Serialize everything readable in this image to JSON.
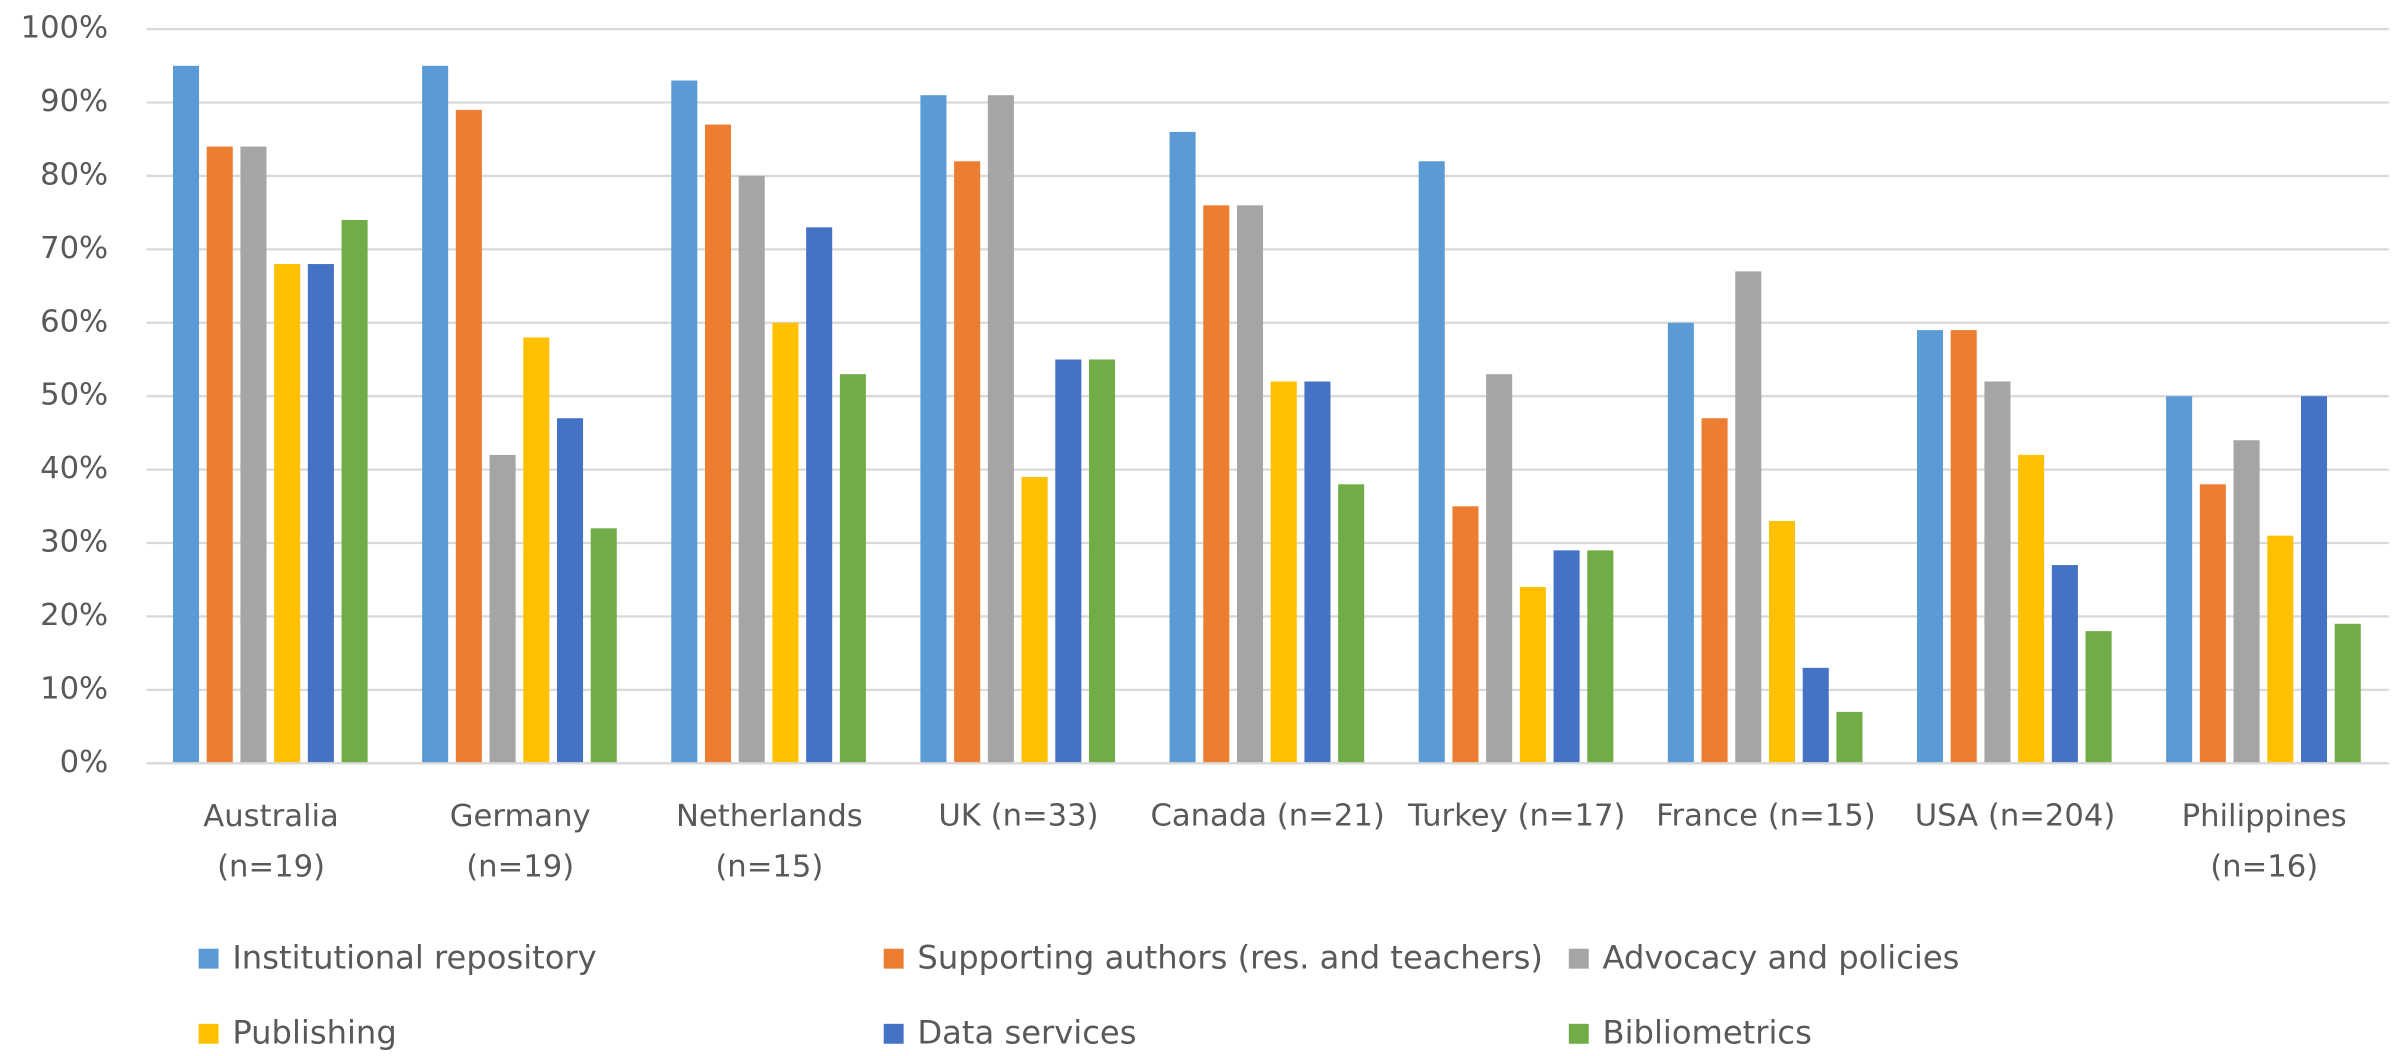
{
  "chart_data": {
    "type": "bar",
    "categories": [
      "Australia (n=19)",
      "Germany (n=19)",
      "Netherlands (n=15)",
      "UK (n=33)",
      "Canada (n=21)",
      "Turkey (n=17)",
      "France (n=15)",
      "USA (n=204)",
      "Philippines (n=16)"
    ],
    "series": [
      {
        "name": "Institutional repository",
        "color": "#5b9bd5",
        "values": [
          95,
          95,
          93,
          91,
          86,
          82,
          60,
          59,
          50
        ]
      },
      {
        "name": "Supporting authors (res. and teachers)",
        "color": "#ed7d31",
        "values": [
          84,
          89,
          87,
          82,
          76,
          35,
          47,
          59,
          38
        ]
      },
      {
        "name": "Advocacy and policies",
        "color": "#a5a5a5",
        "values": [
          84,
          42,
          80,
          91,
          76,
          53,
          67,
          52,
          44
        ]
      },
      {
        "name": "Publishing",
        "color": "#ffc000",
        "values": [
          68,
          58,
          60,
          39,
          52,
          24,
          33,
          42,
          31
        ]
      },
      {
        "name": "Data services",
        "color": "#4472c4",
        "values": [
          68,
          47,
          73,
          55,
          52,
          29,
          13,
          27,
          50
        ]
      },
      {
        "name": "Bibliometrics",
        "color": "#70ad47",
        "values": [
          74,
          32,
          53,
          55,
          38,
          29,
          7,
          18,
          19
        ]
      }
    ],
    "ylim": [
      0,
      100
    ],
    "yticks": [
      {
        "value": 0,
        "label": "0%"
      },
      {
        "value": 10,
        "label": "10%"
      },
      {
        "value": 20,
        "label": "20%"
      },
      {
        "value": 30,
        "label": "30%"
      },
      {
        "value": 40,
        "label": "40%"
      },
      {
        "value": 50,
        "label": "50%"
      },
      {
        "value": 60,
        "label": "60%"
      },
      {
        "value": 70,
        "label": "70%"
      },
      {
        "value": 80,
        "label": "80%"
      },
      {
        "value": 90,
        "label": "90%"
      },
      {
        "value": 100,
        "label": "100%"
      }
    ],
    "grid": true,
    "legend": "bottom"
  }
}
